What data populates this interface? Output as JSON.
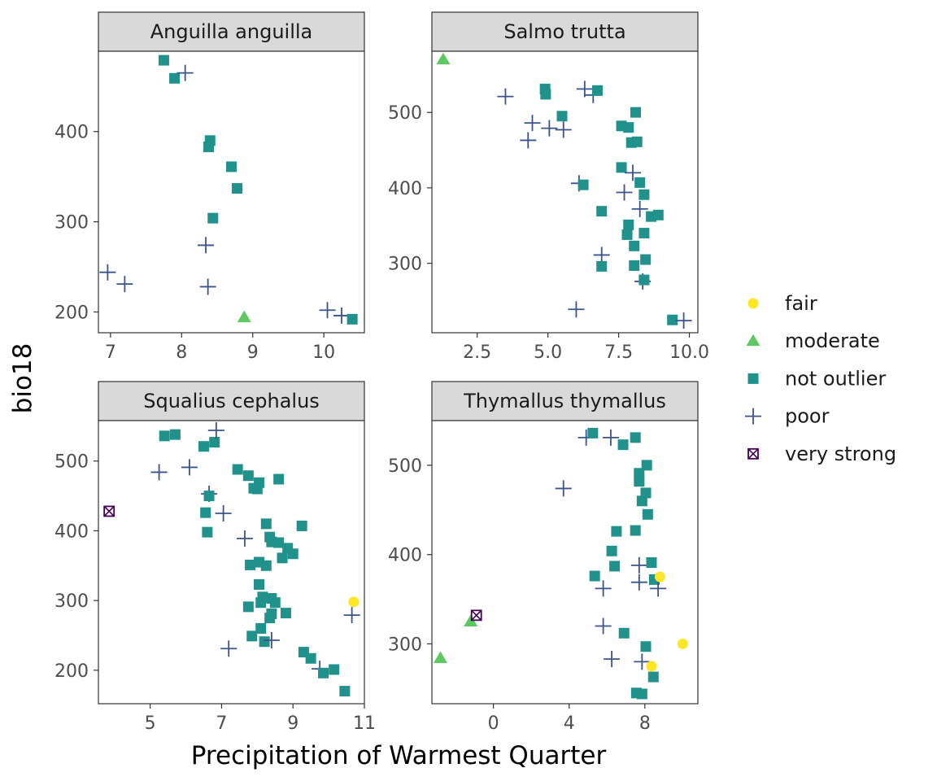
{
  "chart_data": {
    "type": "scatter",
    "xlabel": "Precipitation of Warmest Quarter",
    "ylabel": "bio18",
    "grid": false,
    "legend_position": "right",
    "legend": [
      {
        "key": "fair",
        "label": "fair",
        "color": "#FDE725",
        "shape": "circle"
      },
      {
        "key": "moderate",
        "label": "moderate",
        "color": "#5EC962",
        "shape": "triangle"
      },
      {
        "key": "not outlier",
        "label": "not outlier",
        "color": "#21918C",
        "shape": "square"
      },
      {
        "key": "poor",
        "label": "poor",
        "color": "#3B528B",
        "shape": "plus"
      },
      {
        "key": "very strong",
        "label": "very strong",
        "color": "#440154",
        "shape": "boxx"
      }
    ],
    "panels": [
      {
        "title": "Anguilla anguilla",
        "xlim": [
          6.83,
          10.57
        ],
        "ylim": [
          177,
          489
        ],
        "xticks": [
          "7",
          "8",
          "9",
          "10"
        ],
        "yticks": [
          "200",
          "300",
          "400"
        ],
        "points": [
          {
            "x": 7.75,
            "y": 479,
            "c": "not outlier"
          },
          {
            "x": 7.9,
            "y": 459,
            "c": "not outlier"
          },
          {
            "x": 8.05,
            "y": 465,
            "c": "poor"
          },
          {
            "x": 8.4,
            "y": 390,
            "c": "not outlier"
          },
          {
            "x": 8.38,
            "y": 383,
            "c": "not outlier"
          },
          {
            "x": 8.7,
            "y": 361,
            "c": "not outlier"
          },
          {
            "x": 8.78,
            "y": 337,
            "c": "not outlier"
          },
          {
            "x": 8.44,
            "y": 304,
            "c": "not outlier"
          },
          {
            "x": 8.34,
            "y": 274,
            "c": "poor"
          },
          {
            "x": 8.37,
            "y": 228,
            "c": "poor"
          },
          {
            "x": 6.96,
            "y": 244,
            "c": "poor"
          },
          {
            "x": 7.2,
            "y": 231,
            "c": "poor"
          },
          {
            "x": 8.88,
            "y": 194,
            "c": "moderate"
          },
          {
            "x": 10.05,
            "y": 202,
            "c": "poor"
          },
          {
            "x": 10.25,
            "y": 196,
            "c": "poor"
          },
          {
            "x": 10.4,
            "y": 192,
            "c": "not outlier"
          }
        ]
      },
      {
        "title": "Salmo trutta",
        "xlim": [
          0.9,
          10.3
        ],
        "ylim": [
          208,
          581
        ],
        "xticks": [
          "2.5",
          "5.0",
          "7.5",
          "10.0"
        ],
        "yticks": [
          "300",
          "400",
          "500"
        ],
        "points": [
          {
            "x": 1.3,
            "y": 570,
            "c": "moderate"
          },
          {
            "x": 3.5,
            "y": 521,
            "c": "poor"
          },
          {
            "x": 4.3,
            "y": 463,
            "c": "poor"
          },
          {
            "x": 4.45,
            "y": 486,
            "c": "poor"
          },
          {
            "x": 4.9,
            "y": 531,
            "c": "not outlier"
          },
          {
            "x": 4.92,
            "y": 524,
            "c": "not outlier"
          },
          {
            "x": 5.05,
            "y": 479,
            "c": "poor"
          },
          {
            "x": 5.5,
            "y": 495,
            "c": "not outlier"
          },
          {
            "x": 5.55,
            "y": 477,
            "c": "poor"
          },
          {
            "x": 6.3,
            "y": 531,
            "c": "poor"
          },
          {
            "x": 6.6,
            "y": 523,
            "c": "poor"
          },
          {
            "x": 6.75,
            "y": 529,
            "c": "not outlier"
          },
          {
            "x": 6.1,
            "y": 406,
            "c": "poor"
          },
          {
            "x": 6.25,
            "y": 404,
            "c": "not outlier"
          },
          {
            "x": 6.9,
            "y": 369,
            "c": "not outlier"
          },
          {
            "x": 6.9,
            "y": 311,
            "c": "poor"
          },
          {
            "x": 6.9,
            "y": 296,
            "c": "not outlier"
          },
          {
            "x": 6.0,
            "y": 239,
            "c": "poor"
          },
          {
            "x": 7.6,
            "y": 482,
            "c": "not outlier"
          },
          {
            "x": 7.85,
            "y": 480,
            "c": "not outlier"
          },
          {
            "x": 7.95,
            "y": 460,
            "c": "not outlier"
          },
          {
            "x": 8.15,
            "y": 461,
            "c": "not outlier"
          },
          {
            "x": 8.1,
            "y": 500,
            "c": "not outlier"
          },
          {
            "x": 7.6,
            "y": 427,
            "c": "not outlier"
          },
          {
            "x": 8.0,
            "y": 420,
            "c": "poor"
          },
          {
            "x": 8.25,
            "y": 407,
            "c": "not outlier"
          },
          {
            "x": 7.7,
            "y": 394,
            "c": "poor"
          },
          {
            "x": 8.4,
            "y": 391,
            "c": "not outlier"
          },
          {
            "x": 8.25,
            "y": 372,
            "c": "poor"
          },
          {
            "x": 8.65,
            "y": 362,
            "c": "not outlier"
          },
          {
            "x": 8.9,
            "y": 364,
            "c": "not outlier"
          },
          {
            "x": 7.85,
            "y": 351,
            "c": "not outlier"
          },
          {
            "x": 8.05,
            "y": 323,
            "c": "not outlier"
          },
          {
            "x": 7.8,
            "y": 338,
            "c": "not outlier"
          },
          {
            "x": 8.4,
            "y": 340,
            "c": "not outlier"
          },
          {
            "x": 8.45,
            "y": 305,
            "c": "not outlier"
          },
          {
            "x": 8.05,
            "y": 297,
            "c": "not outlier"
          },
          {
            "x": 8.35,
            "y": 276,
            "c": "poor"
          },
          {
            "x": 8.4,
            "y": 278,
            "c": "not outlier"
          },
          {
            "x": 9.4,
            "y": 225,
            "c": "not outlier"
          },
          {
            "x": 9.8,
            "y": 224,
            "c": "poor"
          }
        ]
      },
      {
        "title": "Squalius cephalus",
        "xlim": [
          3.55,
          11.0
        ],
        "ylim": [
          152,
          558
        ],
        "xticks": [
          "5",
          "7",
          "9",
          "11"
        ],
        "yticks": [
          "200",
          "300",
          "400",
          "500"
        ],
        "points": [
          {
            "x": 3.85,
            "y": 428,
            "c": "very strong"
          },
          {
            "x": 5.4,
            "y": 536,
            "c": "not outlier"
          },
          {
            "x": 5.7,
            "y": 538,
            "c": "not outlier"
          },
          {
            "x": 5.25,
            "y": 484,
            "c": "poor"
          },
          {
            "x": 6.1,
            "y": 491,
            "c": "poor"
          },
          {
            "x": 6.5,
            "y": 521,
            "c": "not outlier"
          },
          {
            "x": 6.8,
            "y": 527,
            "c": "not outlier"
          },
          {
            "x": 6.85,
            "y": 544,
            "c": "poor"
          },
          {
            "x": 6.65,
            "y": 453,
            "c": "poor"
          },
          {
            "x": 6.65,
            "y": 450,
            "c": "not outlier"
          },
          {
            "x": 6.55,
            "y": 426,
            "c": "not outlier"
          },
          {
            "x": 6.6,
            "y": 398,
            "c": "not outlier"
          },
          {
            "x": 7.05,
            "y": 425,
            "c": "poor"
          },
          {
            "x": 7.45,
            "y": 488,
            "c": "not outlier"
          },
          {
            "x": 7.75,
            "y": 479,
            "c": "not outlier"
          },
          {
            "x": 8.05,
            "y": 469,
            "c": "not outlier"
          },
          {
            "x": 8.0,
            "y": 460,
            "c": "not outlier"
          },
          {
            "x": 7.9,
            "y": 461,
            "c": "not outlier"
          },
          {
            "x": 8.6,
            "y": 474,
            "c": "not outlier"
          },
          {
            "x": 7.65,
            "y": 389,
            "c": "poor"
          },
          {
            "x": 8.25,
            "y": 410,
            "c": "not outlier"
          },
          {
            "x": 8.35,
            "y": 391,
            "c": "not outlier"
          },
          {
            "x": 8.4,
            "y": 384,
            "c": "not outlier"
          },
          {
            "x": 8.6,
            "y": 383,
            "c": "not outlier"
          },
          {
            "x": 8.85,
            "y": 375,
            "c": "not outlier"
          },
          {
            "x": 9.0,
            "y": 367,
            "c": "not outlier"
          },
          {
            "x": 8.7,
            "y": 361,
            "c": "not outlier"
          },
          {
            "x": 9.25,
            "y": 407,
            "c": "not outlier"
          },
          {
            "x": 7.8,
            "y": 351,
            "c": "not outlier"
          },
          {
            "x": 8.05,
            "y": 355,
            "c": "not outlier"
          },
          {
            "x": 8.25,
            "y": 350,
            "c": "not outlier"
          },
          {
            "x": 8.05,
            "y": 323,
            "c": "not outlier"
          },
          {
            "x": 8.15,
            "y": 305,
            "c": "not outlier"
          },
          {
            "x": 8.1,
            "y": 297,
            "c": "not outlier"
          },
          {
            "x": 8.4,
            "y": 303,
            "c": "not outlier"
          },
          {
            "x": 8.5,
            "y": 297,
            "c": "not outlier"
          },
          {
            "x": 7.75,
            "y": 291,
            "c": "not outlier"
          },
          {
            "x": 8.4,
            "y": 281,
            "c": "not outlier"
          },
          {
            "x": 8.8,
            "y": 282,
            "c": "not outlier"
          },
          {
            "x": 8.35,
            "y": 275,
            "c": "not outlier"
          },
          {
            "x": 8.1,
            "y": 260,
            "c": "not outlier"
          },
          {
            "x": 7.85,
            "y": 249,
            "c": "not outlier"
          },
          {
            "x": 8.2,
            "y": 241,
            "c": "not outlier"
          },
          {
            "x": 8.4,
            "y": 243,
            "c": "poor"
          },
          {
            "x": 7.2,
            "y": 231,
            "c": "poor"
          },
          {
            "x": 9.3,
            "y": 226,
            "c": "not outlier"
          },
          {
            "x": 9.5,
            "y": 217,
            "c": "not outlier"
          },
          {
            "x": 9.75,
            "y": 202,
            "c": "poor"
          },
          {
            "x": 9.85,
            "y": 196,
            "c": "not outlier"
          },
          {
            "x": 10.15,
            "y": 201,
            "c": "not outlier"
          },
          {
            "x": 10.45,
            "y": 170,
            "c": "not outlier"
          },
          {
            "x": 10.7,
            "y": 298,
            "c": "fair"
          },
          {
            "x": 10.65,
            "y": 279,
            "c": "poor"
          }
        ]
      },
      {
        "title": "Thymallus thymallus",
        "xlim": [
          -3.25,
          10.8
        ],
        "ylim": [
          233,
          550
        ],
        "xticks": [
          "0",
          "4",
          "8"
        ],
        "yticks": [
          "300",
          "400",
          "500"
        ],
        "points": [
          {
            "x": -2.8,
            "y": 284,
            "c": "moderate"
          },
          {
            "x": -1.2,
            "y": 325,
            "c": "moderate"
          },
          {
            "x": -0.9,
            "y": 332,
            "c": "very strong"
          },
          {
            "x": 3.7,
            "y": 474,
            "c": "poor"
          },
          {
            "x": 4.9,
            "y": 531,
            "c": "poor"
          },
          {
            "x": 5.25,
            "y": 536,
            "c": "not outlier"
          },
          {
            "x": 6.2,
            "y": 531,
            "c": "poor"
          },
          {
            "x": 6.85,
            "y": 523,
            "c": "not outlier"
          },
          {
            "x": 7.5,
            "y": 531,
            "c": "not outlier"
          },
          {
            "x": 5.35,
            "y": 376,
            "c": "not outlier"
          },
          {
            "x": 5.8,
            "y": 362,
            "c": "poor"
          },
          {
            "x": 6.25,
            "y": 404,
            "c": "not outlier"
          },
          {
            "x": 6.4,
            "y": 387,
            "c": "not outlier"
          },
          {
            "x": 6.5,
            "y": 426,
            "c": "not outlier"
          },
          {
            "x": 7.5,
            "y": 427,
            "c": "not outlier"
          },
          {
            "x": 7.7,
            "y": 491,
            "c": "not outlier"
          },
          {
            "x": 7.7,
            "y": 482,
            "c": "not outlier"
          },
          {
            "x": 8.1,
            "y": 500,
            "c": "not outlier"
          },
          {
            "x": 8.05,
            "y": 469,
            "c": "not outlier"
          },
          {
            "x": 7.85,
            "y": 460,
            "c": "not outlier"
          },
          {
            "x": 8.15,
            "y": 445,
            "c": "not outlier"
          },
          {
            "x": 7.7,
            "y": 388,
            "c": "poor"
          },
          {
            "x": 7.7,
            "y": 369,
            "c": "poor"
          },
          {
            "x": 8.35,
            "y": 391,
            "c": "not outlier"
          },
          {
            "x": 8.5,
            "y": 372,
            "c": "not outlier"
          },
          {
            "x": 8.7,
            "y": 362,
            "c": "poor"
          },
          {
            "x": 8.8,
            "y": 375,
            "c": "fair"
          },
          {
            "x": 5.8,
            "y": 320,
            "c": "poor"
          },
          {
            "x": 6.9,
            "y": 312,
            "c": "not outlier"
          },
          {
            "x": 6.25,
            "y": 283,
            "c": "poor"
          },
          {
            "x": 7.85,
            "y": 280,
            "c": "poor"
          },
          {
            "x": 8.05,
            "y": 297,
            "c": "not outlier"
          },
          {
            "x": 8.35,
            "y": 275,
            "c": "fair"
          },
          {
            "x": 8.45,
            "y": 263,
            "c": "not outlier"
          },
          {
            "x": 7.55,
            "y": 245,
            "c": "not outlier"
          },
          {
            "x": 7.85,
            "y": 244,
            "c": "not outlier"
          },
          {
            "x": 10.0,
            "y": 300,
            "c": "fair"
          }
        ]
      }
    ]
  }
}
